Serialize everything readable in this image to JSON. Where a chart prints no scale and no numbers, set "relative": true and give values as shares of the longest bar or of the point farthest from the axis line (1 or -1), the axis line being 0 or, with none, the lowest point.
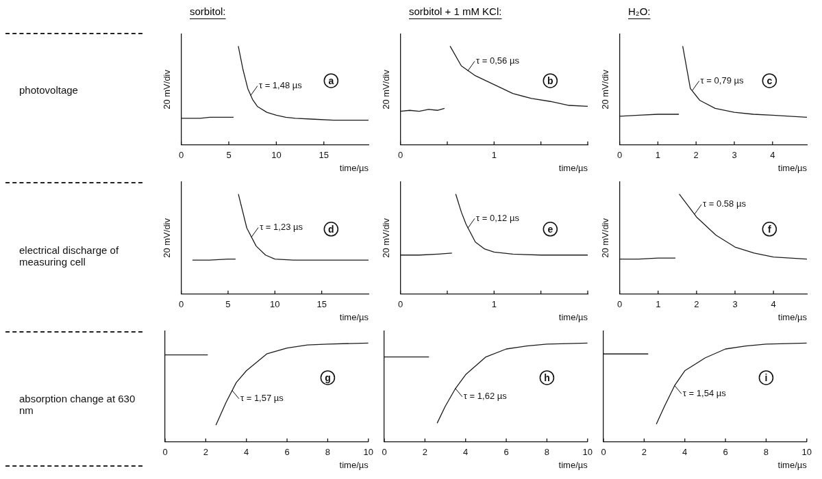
{
  "chart_data": [
    {
      "type": "other",
      "annotations": [
        "photovoltage",
        "electrical discharge of measuring cell",
        "absorption change at 630 nm"
      ]
    },
    {
      "type": "line",
      "title": "sorbitol:",
      "xlabel": "time/µs",
      "ylabel": "20 mV/div",
      "relative": true,
      "xlim": [
        0,
        19.7
      ],
      "xticks": [
        0,
        5,
        10,
        15
      ],
      "annotations": [
        {
          "text": "τ = 1,48 µs",
          "x": 7.3,
          "y": 0.5
        },
        "a"
      ],
      "series": [
        {
          "color": "#1a1a1a",
          "x": [
            0,
            1,
            2,
            3,
            4,
            5,
            5.5,
            5.8,
            6.0,
            6.5,
            7,
            7.5,
            8,
            9,
            10,
            11,
            12,
            14,
            16,
            19.7
          ],
          "values": [
            0.27,
            0.27,
            0.27,
            0.28,
            0.28,
            0.28,
            0.28,
            null,
            1.0,
            0.76,
            0.57,
            0.46,
            0.39,
            0.33,
            0.3,
            0.28,
            0.27,
            0.26,
            0.25,
            0.25
          ]
        }
      ]
    },
    {
      "type": "line",
      "title": "sorbitol + 1 mM KCl:",
      "xlabel": "time/µs",
      "ylabel": "20 mV/div",
      "relative": true,
      "xlim": [
        0,
        2
      ],
      "xticks": [
        0,
        {
          "value": 0.5,
          "label": null
        },
        1,
        {
          "value": 1.5,
          "label": null
        },
        {
          "value": 2,
          "label": null
        }
      ],
      "annotations": [
        {
          "text": "τ = 0,56 µs",
          "x": 0.72,
          "y": 0.75
        },
        "b"
      ],
      "series": [
        {
          "color": "#1a1a1a",
          "x": [
            0,
            0.1,
            0.2,
            0.3,
            0.4,
            0.47,
            0.5,
            0.53,
            0.65,
            0.8,
            1.0,
            1.2,
            1.4,
            1.6,
            1.8,
            2.0
          ],
          "values": [
            0.34,
            0.35,
            0.34,
            0.36,
            0.35,
            0.37,
            null,
            1.0,
            0.8,
            0.7,
            0.61,
            0.52,
            0.47,
            0.44,
            0.4,
            0.39
          ]
        }
      ]
    },
    {
      "type": "line",
      "title": "H₂O:",
      "xlabel": "time/µs",
      "ylabel": "20 mV/div",
      "relative": true,
      "xlim": [
        0,
        4.9
      ],
      "xticks": [
        0,
        1,
        2,
        3,
        4
      ],
      "annotations": [
        {
          "text": "τ = 0,79 µs",
          "x": 1.9,
          "y": 0.55
        },
        "c"
      ],
      "series": [
        {
          "color": "#1a1a1a",
          "x": [
            0,
            0.5,
            1,
            1.55,
            1.6,
            1.65,
            1.85,
            2.1,
            2.5,
            3,
            3.5,
            4,
            4.9
          ],
          "values": [
            0.29,
            0.3,
            0.31,
            0.31,
            null,
            1.0,
            0.57,
            0.45,
            0.37,
            0.33,
            0.31,
            0.3,
            0.28
          ]
        }
      ]
    },
    {
      "type": "line",
      "xlabel": "time/µs",
      "ylabel": "20 mV/div",
      "relative": true,
      "xlim": [
        0,
        20
      ],
      "xticks": [
        0,
        5,
        10,
        15
      ],
      "annotations": [
        {
          "text": "τ = 1,23 µs",
          "x": 7.5,
          "y": 0.57
        },
        "d"
      ],
      "series": [
        {
          "color": "#1a1a1a",
          "x": [
            1.2,
            3,
            5,
            5.8,
            6.0,
            6.1,
            7,
            8,
            9,
            10,
            12,
            15,
            20
          ],
          "values": [
            0.34,
            0.34,
            0.35,
            0.35,
            null,
            1.0,
            0.66,
            0.48,
            0.39,
            0.35,
            0.34,
            0.34,
            0.34
          ]
        }
      ]
    },
    {
      "type": "line",
      "xlabel": "time/µs",
      "ylabel": "20 mV/div",
      "relative": true,
      "xlim": [
        0,
        2
      ],
      "xticks": [
        0,
        {
          "value": 0.5,
          "label": null
        },
        1,
        {
          "value": 1.5,
          "label": null
        },
        {
          "value": 2,
          "label": null
        }
      ],
      "annotations": [
        {
          "text": "τ = 0,12 µs",
          "x": 0.72,
          "y": 0.66
        },
        "e"
      ],
      "series": [
        {
          "color": "#1a1a1a",
          "x": [
            0,
            0.2,
            0.4,
            0.55,
            0.57,
            0.59,
            0.65,
            0.7,
            0.8,
            0.9,
            1.0,
            1.2,
            1.5,
            2.0
          ],
          "values": [
            0.39,
            0.39,
            0.4,
            0.41,
            null,
            1.0,
            0.82,
            0.7,
            0.52,
            0.45,
            0.42,
            0.4,
            0.39,
            0.39
          ]
        }
      ]
    },
    {
      "type": "line",
      "xlabel": "time/µs",
      "ylabel": "20 mV/div",
      "relative": true,
      "xlim": [
        0,
        4.87
      ],
      "xticks": [
        0,
        1,
        2,
        3,
        4
      ],
      "annotations": [
        {
          "text": "τ = 0.58 µs",
          "x": 1.95,
          "y": 0.8
        },
        "f"
      ],
      "series": [
        {
          "color": "#1a1a1a",
          "x": [
            0,
            0.5,
            1,
            1.45,
            1.5,
            1.55,
            2.0,
            2.5,
            3,
            3.5,
            4,
            4.87
          ],
          "values": [
            0.35,
            0.35,
            0.36,
            0.36,
            null,
            1.0,
            0.77,
            0.59,
            0.47,
            0.41,
            0.37,
            0.35
          ]
        }
      ]
    },
    {
      "type": "line",
      "xlabel": "time/µs",
      "relative": true,
      "xlim": [
        0,
        10
      ],
      "xticks": [
        0,
        2,
        4,
        6,
        8,
        10
      ],
      "annotations": [
        {
          "text": "τ = 1,57 µs",
          "x": 3.3,
          "y": 0.52
        },
        "g"
      ],
      "series": [
        {
          "color": "#1a1a1a",
          "x": [
            0,
            1,
            2,
            2.1,
            2.3,
            2.5,
            3,
            3.5,
            4,
            5,
            6,
            7,
            8,
            10
          ],
          "values": [
            0.88,
            0.88,
            0.88,
            0.88,
            null,
            0.17,
            0.4,
            0.6,
            0.72,
            0.89,
            0.95,
            0.98,
            0.99,
            1.0
          ]
        }
      ]
    },
    {
      "type": "line",
      "xlabel": "time/µs",
      "relative": true,
      "xlim": [
        0,
        10
      ],
      "xticks": [
        0,
        2,
        4,
        6,
        8,
        10
      ],
      "annotations": [
        {
          "text": "τ = 1,62 µs",
          "x": 3.5,
          "y": 0.54
        },
        "h"
      ],
      "series": [
        {
          "color": "#1a1a1a",
          "x": [
            0,
            1,
            2,
            2.2,
            2.4,
            2.6,
            3,
            3.5,
            4,
            5,
            6,
            7,
            8,
            10
          ],
          "values": [
            0.86,
            0.86,
            0.86,
            0.86,
            null,
            0.19,
            0.36,
            0.54,
            0.68,
            0.86,
            0.94,
            0.97,
            0.99,
            1.0
          ]
        }
      ]
    },
    {
      "type": "line",
      "xlabel": "time/µs",
      "relative": true,
      "xlim": [
        0,
        10
      ],
      "xticks": [
        0,
        2,
        4,
        6,
        8,
        10
      ],
      "annotations": [
        {
          "text": "τ = 1,54 µs",
          "x": 3.5,
          "y": 0.57
        },
        "i"
      ],
      "series": [
        {
          "color": "#1a1a1a",
          "x": [
            0,
            1,
            2,
            2.2,
            2.4,
            2.6,
            3,
            3.5,
            4,
            5,
            6,
            7,
            8,
            10
          ],
          "values": [
            0.89,
            0.89,
            0.89,
            0.89,
            null,
            0.18,
            0.36,
            0.57,
            0.72,
            0.85,
            0.94,
            0.97,
            0.99,
            1.0
          ]
        }
      ]
    }
  ]
}
